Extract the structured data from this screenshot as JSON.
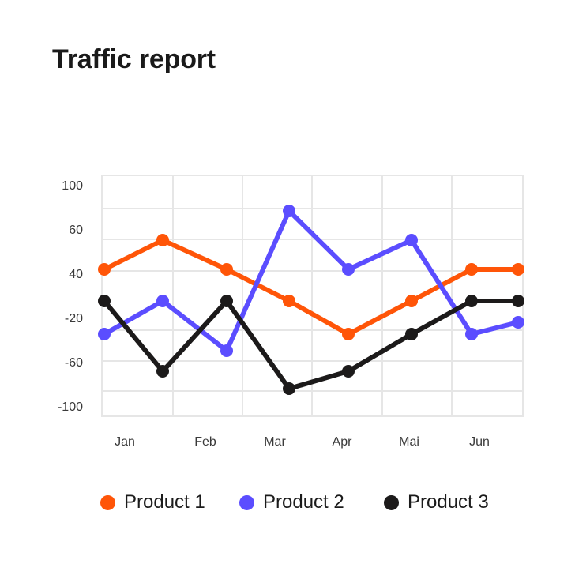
{
  "title": "Traffic report",
  "colors": {
    "product1": "#ff5508",
    "product2": "#5b4dff",
    "product3": "#1c1a1a",
    "grid": "#e6e6e6"
  },
  "chart_data": {
    "type": "line",
    "title": "Traffic report",
    "xlabel": "",
    "ylabel": "",
    "x_tick_labels": [
      "Jan",
      "Feb",
      "Mar",
      "Apr",
      "Mai",
      "Jun"
    ],
    "y_tick_labels": [
      "100",
      "60",
      "40",
      "-20",
      "-60",
      "-100"
    ],
    "grid": true,
    "legend_position": "bottom",
    "point_count": 7,
    "series": [
      {
        "name": "Product 1",
        "color": "#ff5508",
        "values": [
          40,
          60,
          40,
          0,
          -40,
          0,
          40,
          40
        ]
      },
      {
        "name": "Product 2",
        "color": "#5b4dff",
        "values": [
          -40,
          0,
          -60,
          100,
          40,
          60,
          -40,
          -25
        ]
      },
      {
        "name": "Product 3",
        "color": "#1c1a1a",
        "values": [
          0,
          -90,
          0,
          -110,
          -90,
          -40,
          0,
          0
        ]
      }
    ]
  },
  "legend": [
    {
      "label": "Product 1",
      "color": "#ff5508"
    },
    {
      "label": "Product 2",
      "color": "#5b4dff"
    },
    {
      "label": "Product 3",
      "color": "#1c1a1a"
    }
  ]
}
